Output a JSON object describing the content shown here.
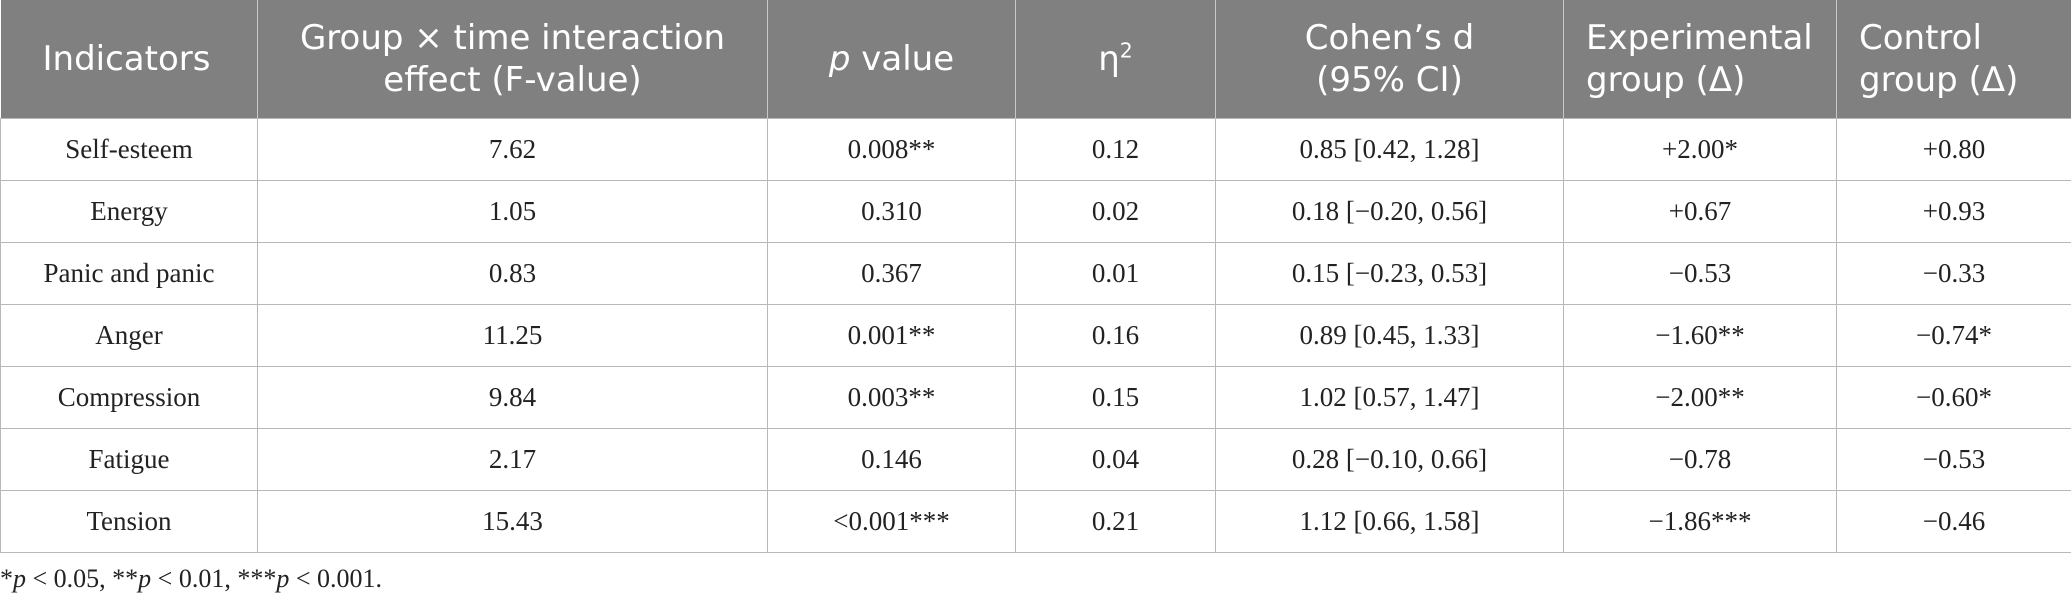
{
  "table": {
    "headers": [
      {
        "line1": "Indicators",
        "line2": ""
      },
      {
        "line1": "Group × time interaction",
        "line2": "effect (F-value)"
      },
      {
        "italic": "p",
        "rest": " value"
      },
      {
        "base": "η",
        "sup": "2"
      },
      {
        "line1": "Cohen’s d",
        "line2": "(95% CI)"
      },
      {
        "line1": "Experimental",
        "line2": "group (Δ)"
      },
      {
        "line1": "Control",
        "line2": "group (Δ)"
      }
    ],
    "rows": [
      [
        "Self-esteem",
        "7.62",
        "0.008**",
        "0.12",
        "0.85 [0.42, 1.28]",
        "+2.00*",
        "+0.80"
      ],
      [
        "Energy",
        "1.05",
        "0.310",
        "0.02",
        "0.18 [−0.20, 0.56]",
        "+0.67",
        "+0.93"
      ],
      [
        "Panic and panic",
        "0.83",
        "0.367",
        "0.01",
        "0.15 [−0.23, 0.53]",
        "−0.53",
        "−0.33"
      ],
      [
        "Anger",
        "11.25",
        "0.001**",
        "0.16",
        "0.89 [0.45, 1.33]",
        "−1.60**",
        "−0.74*"
      ],
      [
        "Compression",
        "9.84",
        "0.003**",
        "0.15",
        "1.02 [0.57, 1.47]",
        "−2.00**",
        "−0.60*"
      ],
      [
        "Fatigue",
        "2.17",
        "0.146",
        "0.04",
        "0.28 [−0.10, 0.66]",
        "−0.78",
        "−0.53"
      ],
      [
        "Tension",
        "15.43",
        "<0.001***",
        "0.21",
        "1.12 [0.66, 1.58]",
        "−1.86***",
        "−0.46"
      ]
    ]
  },
  "footnote": {
    "parts": [
      {
        "text": "*",
        "italic": false
      },
      {
        "text": "p",
        "italic": true
      },
      {
        "text": " < 0.05, **",
        "italic": false
      },
      {
        "text": "p",
        "italic": true
      },
      {
        "text": " < 0.01, ***",
        "italic": false
      },
      {
        "text": "p",
        "italic": true
      },
      {
        "text": " < 0.001.",
        "italic": false
      }
    ]
  },
  "colors": {
    "header_bg": "#808080",
    "header_text": "#ffffff",
    "grid": "#b8b8b8"
  }
}
